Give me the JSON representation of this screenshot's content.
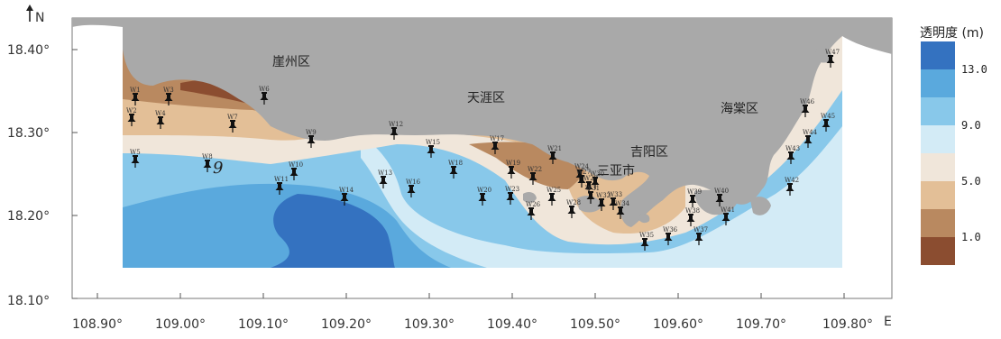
{
  "map": {
    "north_label": "N",
    "east_label": "E",
    "lat_ticks": [
      "18.40°",
      "18.30°",
      "18.20°",
      "18.10°"
    ],
    "lon_ticks": [
      "108.90°",
      "109.00°",
      "109.10°",
      "109.20°",
      "109.30°",
      "109.40°",
      "109.50°",
      "109.60°",
      "109.70°",
      "109.80°"
    ],
    "districts": [
      "崖州区",
      "天涯区",
      "吉阳区",
      "海棠区"
    ],
    "city_label": "三亚市",
    "contour_label": "9"
  },
  "legend": {
    "title": "透明度 (m)",
    "levels": [
      "13.0",
      "9.0",
      "5.0",
      "1.0"
    ],
    "colors": [
      "#3472c0",
      "#5aa9dd",
      "#88c8ea",
      "#d3ebf6",
      "#f0e6da",
      "#e3bf97",
      "#b98960",
      "#8b4d30"
    ]
  },
  "colors": {
    "land": "#a9a9a9",
    "very_light": "#d3ebf6",
    "light_blue": "#88c8ea",
    "mid_blue": "#5aa9dd",
    "deep_blue": "#3472c0",
    "beige": "#f0e6da",
    "tan": "#e3bf97",
    "brown": "#b98960",
    "dark_brown": "#8b4d30"
  },
  "stations": [
    "W1",
    "W2",
    "W3",
    "W4",
    "W5",
    "W6",
    "W7",
    "W8",
    "W9",
    "W10",
    "W11",
    "W12",
    "W13",
    "W14",
    "W15",
    "W16",
    "W17",
    "W18",
    "W19",
    "W20",
    "W21",
    "W22",
    "W23",
    "W24",
    "W25",
    "W26",
    "W27",
    "W28",
    "W29",
    "W30",
    "W31",
    "W32",
    "W33",
    "W34",
    "W35",
    "W36",
    "W37",
    "W38",
    "W39",
    "W40",
    "W41",
    "W42",
    "W43",
    "W44",
    "W45",
    "W46",
    "W47",
    "W48"
  ]
}
